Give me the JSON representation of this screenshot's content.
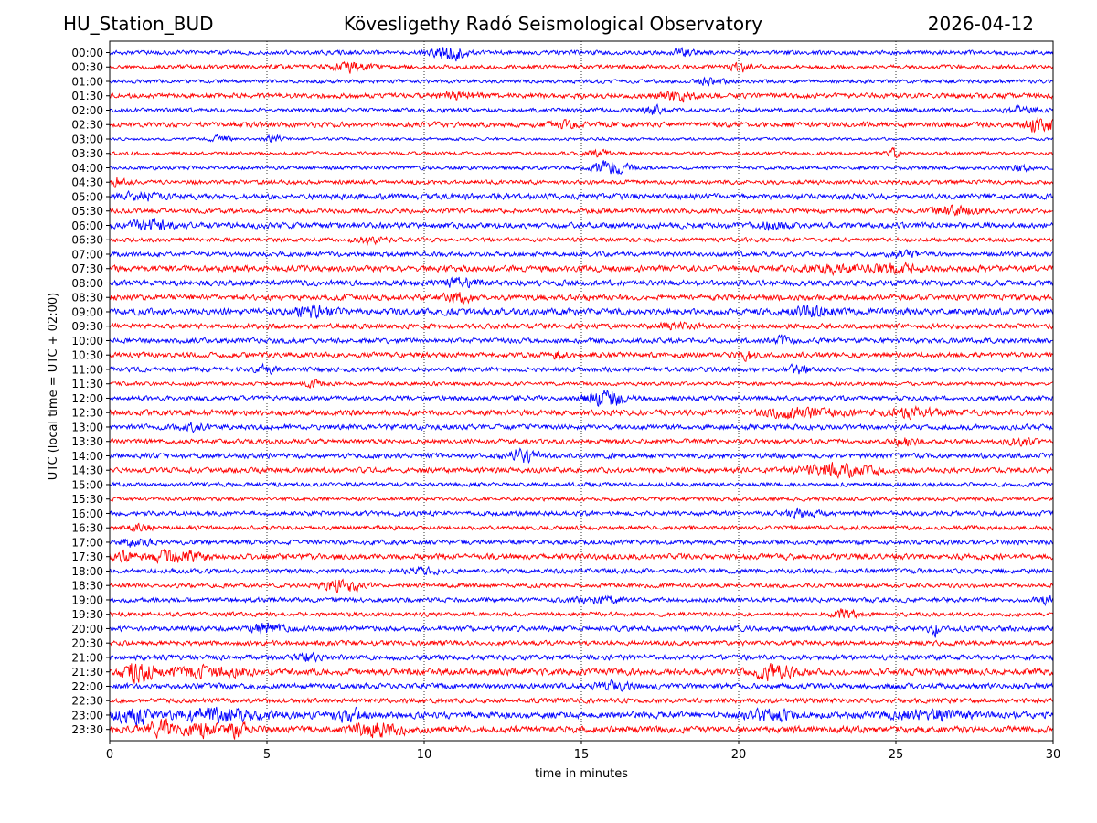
{
  "header": {
    "station": "HU_Station_BUD",
    "title": "Kövesligethy Radó Seismological Observatory",
    "date": "2026-04-12"
  },
  "chart_data": {
    "type": "line",
    "title": "Kövesligethy Radó Seismological Observatory",
    "subtitle_left": "HU_Station_BUD",
    "subtitle_right": "2026-04-12",
    "xlabel": "time in minutes",
    "ylabel": "UTC (local time = UTC + 02:00)",
    "xlim": [
      0,
      30
    ],
    "xticks": [
      0,
      5,
      10,
      15,
      20,
      25,
      30
    ],
    "grid": "vertical dotted lines at x ticks",
    "trace_colors": [
      "#0000ff",
      "#ff0000"
    ],
    "rows": [
      {
        "label": "00:00",
        "color": "#0000ff",
        "amp": 0.45,
        "events": [
          {
            "t": 10.8,
            "a": 1.6,
            "w": 0.5
          },
          {
            "t": 18.2,
            "a": 0.6,
            "w": 0.4
          }
        ]
      },
      {
        "label": "00:30",
        "color": "#ff0000",
        "amp": 0.45,
        "events": [
          {
            "t": 7.6,
            "a": 0.9,
            "w": 0.6
          },
          {
            "t": 20.1,
            "a": 0.8,
            "w": 0.4
          }
        ]
      },
      {
        "label": "01:00",
        "color": "#0000ff",
        "amp": 0.4,
        "events": [
          {
            "t": 19.1,
            "a": 0.7,
            "w": 0.4
          }
        ]
      },
      {
        "label": "01:30",
        "color": "#ff0000",
        "amp": 0.55,
        "events": [
          {
            "t": 18.0,
            "a": 0.7,
            "w": 0.6
          },
          {
            "t": 11.0,
            "a": 0.6,
            "w": 0.6
          }
        ]
      },
      {
        "label": "02:00",
        "color": "#0000ff",
        "amp": 0.45,
        "events": [
          {
            "t": 17.3,
            "a": 0.8,
            "w": 0.3
          },
          {
            "t": 29.0,
            "a": 0.7,
            "w": 0.4
          }
        ]
      },
      {
        "label": "02:30",
        "color": "#ff0000",
        "amp": 0.55,
        "events": [
          {
            "t": 29.6,
            "a": 1.3,
            "w": 0.6
          },
          {
            "t": 14.4,
            "a": 0.6,
            "w": 0.4
          }
        ]
      },
      {
        "label": "03:00",
        "color": "#0000ff",
        "amp": 0.3,
        "events": [
          {
            "t": 3.5,
            "a": 0.7,
            "w": 0.3
          },
          {
            "t": 5.2,
            "a": 0.6,
            "w": 0.3
          }
        ]
      },
      {
        "label": "03:30",
        "color": "#ff0000",
        "amp": 0.35,
        "events": [
          {
            "t": 24.9,
            "a": 0.9,
            "w": 0.2
          },
          {
            "t": 15.5,
            "a": 0.5,
            "w": 0.4
          }
        ]
      },
      {
        "label": "04:00",
        "color": "#0000ff",
        "amp": 0.4,
        "events": [
          {
            "t": 15.9,
            "a": 1.2,
            "w": 0.6
          },
          {
            "t": 29.0,
            "a": 0.6,
            "w": 0.3
          }
        ]
      },
      {
        "label": "04:30",
        "color": "#ff0000",
        "amp": 0.45,
        "events": [
          {
            "t": 0.2,
            "a": 0.8,
            "w": 0.3
          }
        ]
      },
      {
        "label": "05:00",
        "color": "#0000ff",
        "amp": 0.6,
        "events": [
          {
            "t": 1.0,
            "a": 0.7,
            "w": 0.6
          }
        ]
      },
      {
        "label": "05:30",
        "color": "#ff0000",
        "amp": 0.5,
        "events": [
          {
            "t": 26.8,
            "a": 0.8,
            "w": 0.7
          }
        ]
      },
      {
        "label": "06:00",
        "color": "#0000ff",
        "amp": 0.6,
        "events": [
          {
            "t": 1.3,
            "a": 1.0,
            "w": 0.6
          },
          {
            "t": 21.0,
            "a": 0.7,
            "w": 0.5
          }
        ]
      },
      {
        "label": "06:30",
        "color": "#ff0000",
        "amp": 0.45,
        "events": [
          {
            "t": 8.3,
            "a": 0.5,
            "w": 0.5
          }
        ]
      },
      {
        "label": "07:00",
        "color": "#0000ff",
        "amp": 0.5,
        "events": [
          {
            "t": 25.3,
            "a": 0.6,
            "w": 0.4
          }
        ]
      },
      {
        "label": "07:30",
        "color": "#ff0000",
        "amp": 0.65,
        "events": [
          {
            "t": 25.0,
            "a": 0.9,
            "w": 0.6
          },
          {
            "t": 23.0,
            "a": 0.7,
            "w": 0.8
          }
        ]
      },
      {
        "label": "08:00",
        "color": "#0000ff",
        "amp": 0.6,
        "events": [
          {
            "t": 11.2,
            "a": 0.9,
            "w": 0.5
          }
        ]
      },
      {
        "label": "08:30",
        "color": "#ff0000",
        "amp": 0.6,
        "events": [
          {
            "t": 11.1,
            "a": 0.8,
            "w": 0.5
          }
        ]
      },
      {
        "label": "09:00",
        "color": "#0000ff",
        "amp": 0.7,
        "events": [
          {
            "t": 6.5,
            "a": 0.9,
            "w": 0.6
          },
          {
            "t": 22.3,
            "a": 0.8,
            "w": 0.6
          }
        ]
      },
      {
        "label": "09:30",
        "color": "#ff0000",
        "amp": 0.55,
        "events": [
          {
            "t": 18.0,
            "a": 0.5,
            "w": 0.6
          }
        ]
      },
      {
        "label": "10:00",
        "color": "#0000ff",
        "amp": 0.55,
        "events": [
          {
            "t": 21.4,
            "a": 0.7,
            "w": 0.3
          }
        ]
      },
      {
        "label": "10:30",
        "color": "#ff0000",
        "amp": 0.55,
        "events": [
          {
            "t": 14.3,
            "a": 1.0,
            "w": 0.2
          },
          {
            "t": 20.3,
            "a": 0.9,
            "w": 0.3
          }
        ]
      },
      {
        "label": "11:00",
        "color": "#0000ff",
        "amp": 0.5,
        "events": [
          {
            "t": 21.9,
            "a": 0.9,
            "w": 0.3
          },
          {
            "t": 5.0,
            "a": 0.6,
            "w": 0.4
          }
        ]
      },
      {
        "label": "11:30",
        "color": "#ff0000",
        "amp": 0.4,
        "events": [
          {
            "t": 6.5,
            "a": 0.6,
            "w": 0.3
          }
        ]
      },
      {
        "label": "12:00",
        "color": "#0000ff",
        "amp": 0.5,
        "events": [
          {
            "t": 15.8,
            "a": 1.6,
            "w": 0.6
          }
        ]
      },
      {
        "label": "12:30",
        "color": "#ff0000",
        "amp": 0.6,
        "events": [
          {
            "t": 22.0,
            "a": 0.9,
            "w": 1.2
          },
          {
            "t": 25.5,
            "a": 0.7,
            "w": 0.8
          }
        ]
      },
      {
        "label": "13:00",
        "color": "#0000ff",
        "amp": 0.55,
        "events": [
          {
            "t": 2.6,
            "a": 0.6,
            "w": 0.4
          }
        ]
      },
      {
        "label": "13:30",
        "color": "#ff0000",
        "amp": 0.5,
        "events": [
          {
            "t": 25.3,
            "a": 0.7,
            "w": 0.4
          },
          {
            "t": 29.0,
            "a": 0.7,
            "w": 0.4
          }
        ]
      },
      {
        "label": "14:00",
        "color": "#0000ff",
        "amp": 0.55,
        "events": [
          {
            "t": 13.1,
            "a": 1.1,
            "w": 0.5
          }
        ]
      },
      {
        "label": "14:30",
        "color": "#ff0000",
        "amp": 0.55,
        "events": [
          {
            "t": 23.1,
            "a": 1.3,
            "w": 1.1
          }
        ]
      },
      {
        "label": "15:00",
        "color": "#0000ff",
        "amp": 0.45,
        "events": []
      },
      {
        "label": "15:30",
        "color": "#ff0000",
        "amp": 0.4,
        "events": []
      },
      {
        "label": "16:00",
        "color": "#0000ff",
        "amp": 0.5,
        "events": [
          {
            "t": 22.0,
            "a": 0.6,
            "w": 0.6
          }
        ]
      },
      {
        "label": "16:30",
        "color": "#ff0000",
        "amp": 0.45,
        "events": [
          {
            "t": 0.9,
            "a": 0.6,
            "w": 0.4
          }
        ]
      },
      {
        "label": "17:00",
        "color": "#0000ff",
        "amp": 0.5,
        "events": [
          {
            "t": 0.8,
            "a": 0.7,
            "w": 0.5
          }
        ]
      },
      {
        "label": "17:30",
        "color": "#ff0000",
        "amp": 0.6,
        "events": [
          {
            "t": 2.1,
            "a": 1.2,
            "w": 0.8
          },
          {
            "t": 0.4,
            "a": 0.8,
            "w": 0.5
          }
        ]
      },
      {
        "label": "18:00",
        "color": "#0000ff",
        "amp": 0.5,
        "events": [
          {
            "t": 10.0,
            "a": 0.5,
            "w": 0.5
          }
        ]
      },
      {
        "label": "18:30",
        "color": "#ff0000",
        "amp": 0.45,
        "events": [
          {
            "t": 7.4,
            "a": 1.2,
            "w": 0.6
          }
        ]
      },
      {
        "label": "19:00",
        "color": "#0000ff",
        "amp": 0.5,
        "events": [
          {
            "t": 29.9,
            "a": 0.8,
            "w": 0.3
          },
          {
            "t": 15.5,
            "a": 0.6,
            "w": 0.7
          }
        ]
      },
      {
        "label": "19:30",
        "color": "#ff0000",
        "amp": 0.45,
        "events": [
          {
            "t": 23.4,
            "a": 0.9,
            "w": 0.4
          }
        ]
      },
      {
        "label": "20:00",
        "color": "#0000ff",
        "amp": 0.55,
        "events": [
          {
            "t": 26.2,
            "a": 1.4,
            "w": 0.15
          },
          {
            "t": 5.0,
            "a": 0.9,
            "w": 0.5
          }
        ]
      },
      {
        "label": "20:30",
        "color": "#ff0000",
        "amp": 0.5,
        "events": []
      },
      {
        "label": "21:00",
        "color": "#0000ff",
        "amp": 0.55,
        "events": [
          {
            "t": 6.3,
            "a": 0.8,
            "w": 0.3
          }
        ]
      },
      {
        "label": "21:30",
        "color": "#ff0000",
        "amp": 0.7,
        "events": [
          {
            "t": 0.9,
            "a": 1.9,
            "w": 0.5
          },
          {
            "t": 21.0,
            "a": 1.4,
            "w": 0.7
          },
          {
            "t": 3.0,
            "a": 0.8,
            "w": 1.2
          }
        ]
      },
      {
        "label": "22:00",
        "color": "#0000ff",
        "amp": 0.6,
        "events": [
          {
            "t": 16.0,
            "a": 0.7,
            "w": 0.6
          }
        ]
      },
      {
        "label": "22:30",
        "color": "#ff0000",
        "amp": 0.5,
        "events": []
      },
      {
        "label": "23:00",
        "color": "#0000ff",
        "amp": 0.7,
        "events": [
          {
            "t": 0.8,
            "a": 1.8,
            "w": 0.5
          },
          {
            "t": 3.5,
            "a": 1.1,
            "w": 1.5
          },
          {
            "t": 7.6,
            "a": 1.0,
            "w": 0.5
          },
          {
            "t": 21.0,
            "a": 1.0,
            "w": 0.7
          },
          {
            "t": 26.0,
            "a": 0.9,
            "w": 1.0
          }
        ]
      },
      {
        "label": "23:30",
        "color": "#ff0000",
        "amp": 0.7,
        "events": [
          {
            "t": 1.7,
            "a": 1.6,
            "w": 0.5
          },
          {
            "t": 2.9,
            "a": 1.3,
            "w": 0.5
          },
          {
            "t": 4.0,
            "a": 1.2,
            "w": 0.4
          },
          {
            "t": 8.5,
            "a": 1.1,
            "w": 0.9
          }
        ]
      }
    ]
  }
}
